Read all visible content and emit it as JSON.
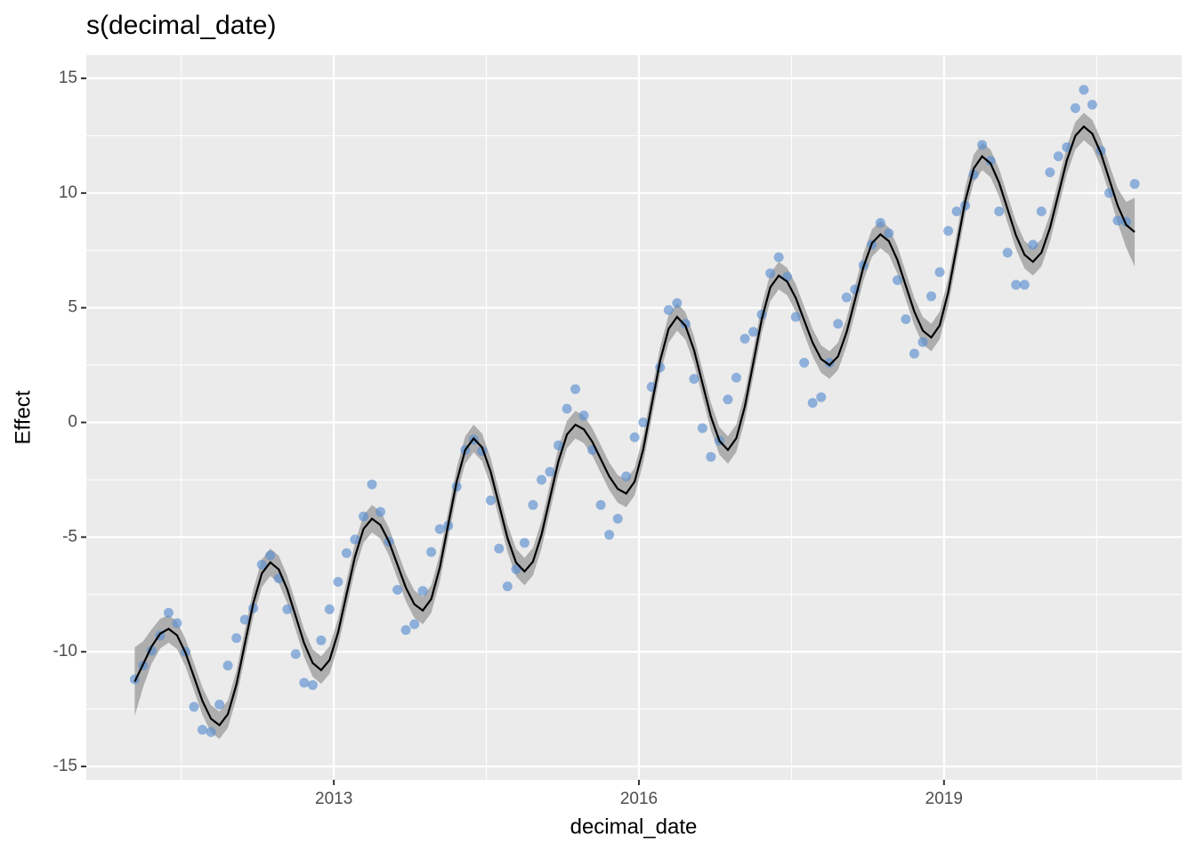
{
  "chart_data": {
    "type": "line",
    "title": "s(decimal_date)",
    "x_label": "decimal_date",
    "y_label": "Effect",
    "x": [
      2011.042,
      2011.125,
      2011.208,
      2011.292,
      2011.375,
      2011.458,
      2011.542,
      2011.625,
      2011.708,
      2011.792,
      2011.875,
      2011.958,
      2012.042,
      2012.125,
      2012.208,
      2012.292,
      2012.375,
      2012.458,
      2012.542,
      2012.625,
      2012.708,
      2012.792,
      2012.875,
      2012.958,
      2013.042,
      2013.125,
      2013.208,
      2013.292,
      2013.375,
      2013.458,
      2013.542,
      2013.625,
      2013.708,
      2013.792,
      2013.875,
      2013.958,
      2014.042,
      2014.125,
      2014.208,
      2014.292,
      2014.375,
      2014.458,
      2014.542,
      2014.625,
      2014.708,
      2014.792,
      2014.875,
      2014.958,
      2015.042,
      2015.125,
      2015.208,
      2015.292,
      2015.375,
      2015.458,
      2015.542,
      2015.625,
      2015.708,
      2015.792,
      2015.875,
      2015.958,
      2016.042,
      2016.125,
      2016.208,
      2016.292,
      2016.375,
      2016.458,
      2016.542,
      2016.625,
      2016.708,
      2016.792,
      2016.875,
      2016.958,
      2017.042,
      2017.125,
      2017.208,
      2017.292,
      2017.375,
      2017.458,
      2017.542,
      2017.625,
      2017.708,
      2017.792,
      2017.875,
      2017.958,
      2018.042,
      2018.125,
      2018.208,
      2018.292,
      2018.375,
      2018.458,
      2018.542,
      2018.625,
      2018.708,
      2018.792,
      2018.875,
      2018.958,
      2019.042,
      2019.125,
      2019.208,
      2019.292,
      2019.375,
      2019.458,
      2019.542,
      2019.625,
      2019.708,
      2019.792,
      2019.875,
      2019.958,
      2020.042,
      2020.125,
      2020.208,
      2020.292,
      2020.375,
      2020.458,
      2020.542,
      2020.625,
      2020.708,
      2020.792,
      2020.875
    ],
    "line": {
      "color": "#000000",
      "values": [
        -11.3,
        -10.54,
        -9.77,
        -9.21,
        -9.0,
        -9.28,
        -10.05,
        -11.1,
        -12.15,
        -12.92,
        -13.2,
        -12.72,
        -11.43,
        -9.65,
        -7.88,
        -6.58,
        -6.1,
        -6.41,
        -7.28,
        -8.45,
        -9.63,
        -10.49,
        -10.8,
        -10.36,
        -9.15,
        -7.5,
        -5.85,
        -4.64,
        -4.2,
        -4.47,
        -5.2,
        -6.2,
        -7.2,
        -7.93,
        -8.2,
        -7.7,
        -6.33,
        -4.45,
        -2.58,
        -1.2,
        -0.7,
        -1.09,
        -2.15,
        -3.6,
        -5.05,
        -6.11,
        -6.5,
        -6.07,
        -4.9,
        -3.3,
        -1.7,
        -0.53,
        -0.1,
        -0.3,
        -0.85,
        -1.6,
        -2.35,
        -2.9,
        -3.1,
        -2.58,
        -1.18,
        0.75,
        2.68,
        4.08,
        4.6,
        4.21,
        3.15,
        1.7,
        0.25,
        -0.81,
        -1.2,
        -0.69,
        0.7,
        2.6,
        4.5,
        5.89,
        6.4,
        6.14,
        5.43,
        4.45,
        3.48,
        2.76,
        2.5,
        2.88,
        3.93,
        5.35,
        6.78,
        7.82,
        8.2,
        7.9,
        7.08,
        5.95,
        4.83,
        4.0,
        3.7,
        4.23,
        5.68,
        7.65,
        9.63,
        11.07,
        11.6,
        11.29,
        10.45,
        9.3,
        8.15,
        7.31,
        7.0,
        7.4,
        8.48,
        9.95,
        11.43,
        12.5,
        12.9,
        12.59,
        11.75,
        10.6,
        9.45,
        8.61,
        8.3
      ]
    },
    "band": {
      "color": "#999999",
      "halfwidth": [
        1.5,
        1.0,
        0.75,
        0.65,
        0.6,
        0.6,
        0.6,
        0.6,
        0.6,
        0.6,
        0.6,
        0.6,
        0.6,
        0.6,
        0.6,
        0.6,
        0.6,
        0.6,
        0.6,
        0.6,
        0.6,
        0.6,
        0.6,
        0.6,
        0.6,
        0.6,
        0.6,
        0.6,
        0.6,
        0.6,
        0.6,
        0.6,
        0.6,
        0.6,
        0.6,
        0.6,
        0.6,
        0.6,
        0.6,
        0.6,
        0.6,
        0.6,
        0.6,
        0.6,
        0.6,
        0.6,
        0.6,
        0.6,
        0.6,
        0.6,
        0.6,
        0.6,
        0.6,
        0.6,
        0.6,
        0.6,
        0.6,
        0.6,
        0.6,
        0.6,
        0.6,
        0.6,
        0.6,
        0.6,
        0.6,
        0.6,
        0.6,
        0.6,
        0.6,
        0.6,
        0.6,
        0.6,
        0.6,
        0.6,
        0.6,
        0.6,
        0.6,
        0.6,
        0.6,
        0.6,
        0.6,
        0.6,
        0.6,
        0.6,
        0.6,
        0.6,
        0.6,
        0.6,
        0.6,
        0.6,
        0.6,
        0.6,
        0.6,
        0.6,
        0.6,
        0.6,
        0.6,
        0.6,
        0.6,
        0.6,
        0.6,
        0.6,
        0.6,
        0.6,
        0.6,
        0.6,
        0.6,
        0.6,
        0.6,
        0.6,
        0.6,
        0.6,
        0.6,
        0.6,
        0.6,
        0.65,
        0.75,
        1.0,
        1.5
      ]
    },
    "points": {
      "color": "#5b8fd0",
      "values": [
        -11.2,
        -10.6,
        -9.95,
        -9.3,
        -8.3,
        -8.75,
        -10.0,
        -12.4,
        -13.4,
        -13.5,
        -12.3,
        -10.6,
        -9.4,
        -8.6,
        -8.1,
        -6.2,
        -5.8,
        -6.8,
        -8.15,
        -10.1,
        -11.35,
        -11.45,
        -9.5,
        -8.15,
        -6.95,
        -5.7,
        -5.1,
        -4.1,
        -2.7,
        -3.9,
        -5.2,
        -7.3,
        -9.05,
        -8.8,
        -7.35,
        -5.65,
        -4.65,
        -4.5,
        -2.8,
        -1.2,
        -0.75,
        -1.25,
        -3.4,
        -5.5,
        -7.15,
        -6.4,
        -5.25,
        -3.6,
        -2.5,
        -2.15,
        -1.0,
        0.6,
        1.45,
        0.3,
        -1.2,
        -3.6,
        -4.9,
        -4.2,
        -2.35,
        -0.65,
        0.0,
        1.55,
        2.4,
        4.9,
        5.2,
        4.3,
        1.9,
        -0.25,
        -1.5,
        -0.8,
        1.0,
        1.95,
        3.65,
        3.95,
        4.7,
        6.5,
        7.2,
        6.35,
        4.6,
        2.6,
        0.85,
        1.1,
        2.6,
        4.3,
        5.45,
        5.8,
        6.85,
        7.75,
        8.7,
        8.25,
        6.2,
        4.5,
        3.0,
        3.5,
        5.5,
        6.55,
        8.35,
        9.2,
        9.45,
        10.8,
        12.1,
        11.4,
        9.2,
        7.4,
        6.0,
        6.0,
        7.75,
        9.2,
        10.9,
        11.6,
        12.0,
        13.7,
        14.5,
        13.85,
        11.85,
        10.0,
        8.8,
        8.75,
        10.4
      ]
    },
    "xlim": [
      2010.566,
      2021.338
    ],
    "ylim": [
      -15.58,
      16.01
    ],
    "xticks": [
      2013,
      2016,
      2019
    ],
    "yticks": [
      -15,
      -10,
      -5,
      0,
      5,
      10,
      15
    ],
    "xminor": [
      2011.5,
      2014.5,
      2017.5,
      2020.5
    ],
    "yminor": [
      -12.5,
      -7.5,
      -2.5,
      2.5,
      7.5,
      12.5
    ],
    "grid": true
  }
}
